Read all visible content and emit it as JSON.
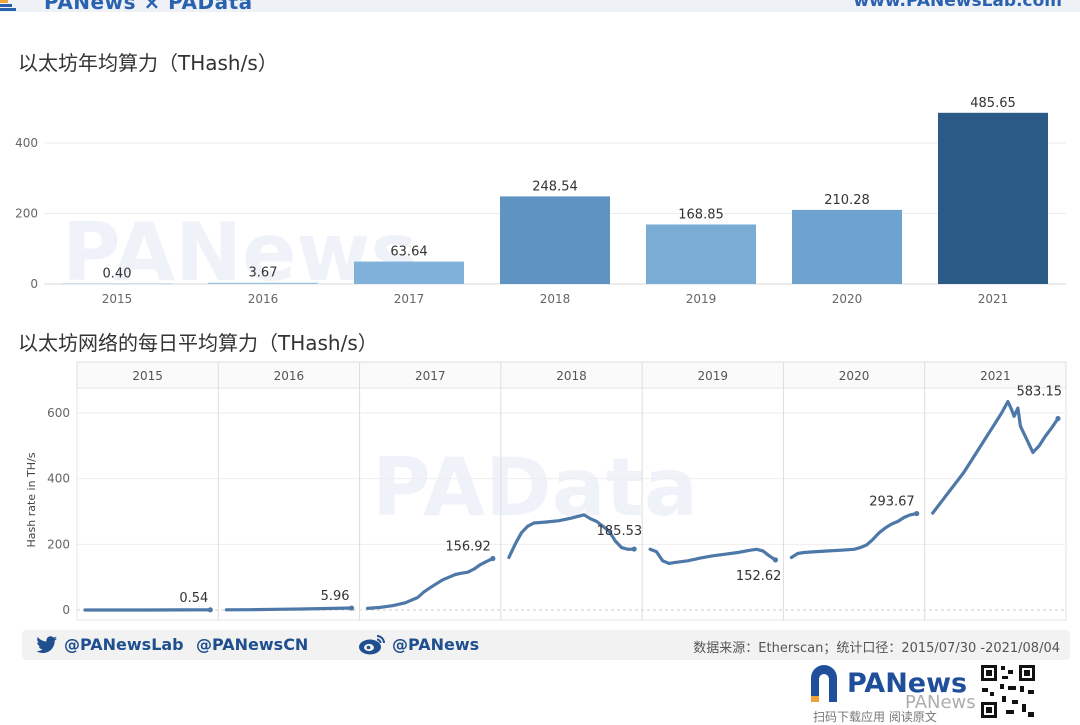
{
  "header": {
    "brand": "PANews × PAData",
    "site": "www.PANewsLab.com"
  },
  "watermarks": {
    "panews": "PANews",
    "padata": "PAData"
  },
  "chart_data": [
    {
      "type": "bar",
      "title": "以太坊年均算力（THash/s）",
      "categories": [
        "2015",
        "2016",
        "2017",
        "2018",
        "2019",
        "2020",
        "2021"
      ],
      "values": [
        0.4,
        3.67,
        63.64,
        248.54,
        168.85,
        210.28,
        485.65
      ],
      "value_labels": [
        "0.40",
        "3.67",
        "63.64",
        "248.54",
        "168.85",
        "210.28",
        "485.65"
      ],
      "yticks": [
        0,
        200,
        400
      ],
      "ylim": [
        0,
        520
      ],
      "colors": [
        "#9fc7e4",
        "#9fc7e4",
        "#7fb1da",
        "#5f94c2",
        "#7aadd6",
        "#6ea3cf",
        "#2b5a86"
      ],
      "grid": true
    },
    {
      "type": "line",
      "title": "以太坊网络的每日平均算力（THash/s）",
      "ylabel": "Hash rate in TH/s",
      "panels": [
        "2015",
        "2016",
        "2017",
        "2018",
        "2019",
        "2020",
        "2021"
      ],
      "yticks": [
        0,
        200,
        400,
        600
      ],
      "ylim": [
        -30,
        680
      ],
      "line_color": "#4d78a8",
      "grid": true,
      "series": [
        {
          "panel": "2015",
          "x": [
            0,
            0.25,
            0.5,
            0.75,
            1.0
          ],
          "y": [
            0,
            0.05,
            0.1,
            0.3,
            0.54
          ],
          "end_label": "0.54"
        },
        {
          "panel": "2016",
          "x": [
            0,
            0.2,
            0.4,
            0.6,
            0.8,
            1.0
          ],
          "y": [
            0.5,
            1,
            2,
            3,
            4.5,
            5.96
          ],
          "end_label": "5.96"
        },
        {
          "panel": "2017",
          "x": [
            0,
            0.1,
            0.2,
            0.3,
            0.4,
            0.45,
            0.5,
            0.55,
            0.6,
            0.65,
            0.7,
            0.75,
            0.8,
            0.85,
            0.9,
            0.95,
            1.0
          ],
          "y": [
            5,
            8,
            13,
            22,
            38,
            55,
            68,
            80,
            92,
            100,
            108,
            112,
            115,
            125,
            138,
            148,
            156.92
          ],
          "end_label": "156.92"
        },
        {
          "panel": "2018",
          "x": [
            0,
            0.05,
            0.1,
            0.15,
            0.2,
            0.3,
            0.4,
            0.5,
            0.55,
            0.6,
            0.65,
            0.7,
            0.75,
            0.8,
            0.85,
            0.9,
            0.95,
            1.0
          ],
          "y": [
            160,
            200,
            235,
            255,
            265,
            268,
            272,
            280,
            285,
            290,
            278,
            270,
            255,
            240,
            210,
            190,
            185,
            185.53
          ],
          "end_label": "185.53"
        },
        {
          "panel": "2019",
          "x": [
            0,
            0.05,
            0.1,
            0.15,
            0.2,
            0.3,
            0.4,
            0.5,
            0.6,
            0.7,
            0.8,
            0.85,
            0.9,
            0.95,
            1.0
          ],
          "y": [
            185,
            178,
            150,
            142,
            145,
            150,
            158,
            165,
            170,
            175,
            182,
            185,
            180,
            165,
            152.62
          ],
          "end_label": "152.62"
        },
        {
          "panel": "2020",
          "x": [
            0,
            0.05,
            0.1,
            0.2,
            0.3,
            0.4,
            0.5,
            0.55,
            0.6,
            0.65,
            0.7,
            0.75,
            0.8,
            0.85,
            0.9,
            0.95,
            1.0
          ],
          "y": [
            160,
            172,
            175,
            178,
            180,
            182,
            185,
            190,
            198,
            215,
            235,
            250,
            262,
            270,
            282,
            290,
            293.67
          ],
          "end_label": "293.67"
        },
        {
          "panel": "2021",
          "x": [
            0,
            0.05,
            0.1,
            0.15,
            0.2,
            0.25,
            0.3,
            0.35,
            0.4,
            0.45,
            0.5,
            0.55,
            0.6,
            0.63,
            0.65,
            0.68,
            0.7,
            0.75,
            0.8,
            0.85,
            0.9,
            0.95,
            1.0
          ],
          "y": [
            295,
            320,
            345,
            370,
            395,
            420,
            450,
            480,
            510,
            540,
            570,
            600,
            635,
            610,
            590,
            615,
            560,
            520,
            480,
            500,
            530,
            555,
            583.15
          ],
          "end_label": "583.15"
        }
      ]
    }
  ],
  "footer": {
    "twitter_1": "@PANewsLab",
    "twitter_2": "@PANewsCN",
    "weibo": "@PANews",
    "source": "数据来源：Etherscan；统计口径：2015/07/30 -2021/08/04"
  },
  "bottom_brand": {
    "logo": "PANews",
    "scan_text": "扫码下载应用  阅读原文",
    "overlay": "PANews"
  }
}
